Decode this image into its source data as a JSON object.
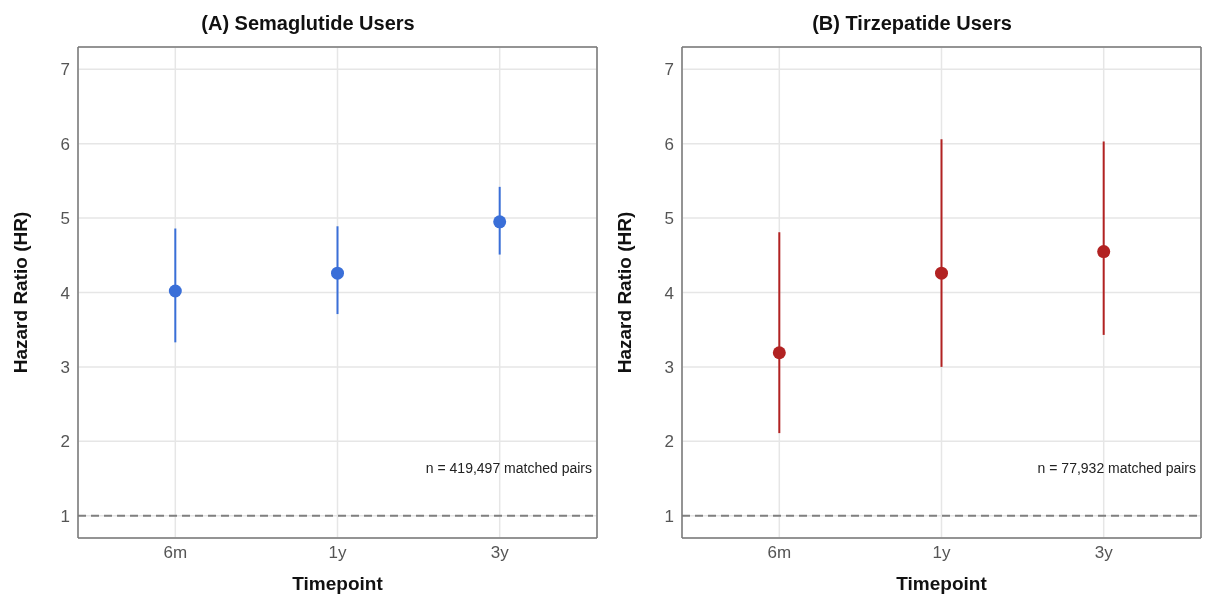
{
  "chart_data": [
    {
      "type": "scatter",
      "title": "(A) Semaglutide Users",
      "xlabel": "Timepoint",
      "ylabel": "Hazard Ratio (HR)",
      "categories": [
        "6m",
        "1y",
        "3y"
      ],
      "series": [
        {
          "color": "#3a6fd8",
          "values": [
            4.02,
            4.26,
            4.95
          ],
          "errors": [
            [
              3.33,
              4.86
            ],
            [
              3.71,
              4.89
            ],
            [
              4.51,
              5.42
            ]
          ]
        }
      ],
      "ylim": [
        0.7,
        7.3
      ],
      "yticks": [
        1,
        2,
        3,
        4,
        5,
        6,
        7
      ],
      "grid": true,
      "marker": "circle",
      "ref_lines": [
        {
          "axis": "y",
          "value": 1,
          "color": "#808080",
          "line_style": "dashed"
        }
      ],
      "annotations": [
        "n = 419,497 matched pairs"
      ]
    },
    {
      "type": "scatter",
      "title": "(B) Tirzepatide Users",
      "xlabel": "Timepoint",
      "ylabel": "Hazard Ratio (HR)",
      "categories": [
        "6m",
        "1y",
        "3y"
      ],
      "series": [
        {
          "color": "#b22222",
          "values": [
            3.19,
            4.26,
            4.55
          ],
          "errors": [
            [
              2.11,
              4.81
            ],
            [
              3.0,
              6.06
            ],
            [
              3.43,
              6.03
            ]
          ]
        }
      ],
      "ylim": [
        0.7,
        7.3
      ],
      "yticks": [
        1,
        2,
        3,
        4,
        5,
        6,
        7
      ],
      "grid": true,
      "marker": "circle",
      "ref_lines": [
        {
          "axis": "y",
          "value": 1,
          "color": "#808080",
          "line_style": "dashed"
        }
      ],
      "annotations": [
        "n = 77,932 matched pairs"
      ]
    }
  ]
}
